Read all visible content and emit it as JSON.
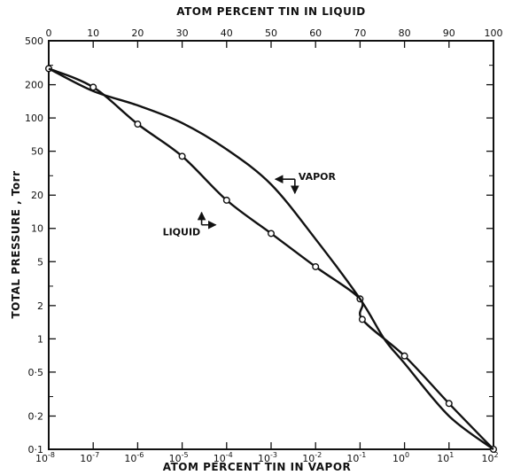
{
  "chart_data": {
    "type": "line",
    "title": "",
    "xlabel_top": "ATOM PERCENT TIN IN LIQUID",
    "xlabel_bottom": "ATOM PERCENT TIN IN VAPOR",
    "ylabel": "TOTAL PRESSURE , Torr",
    "y_scale": "log",
    "ylim": [
      0.1,
      500
    ],
    "y_ticks": [
      {
        "value": 0.1,
        "label": "0·1"
      },
      {
        "value": 0.2,
        "label": "0·2"
      },
      {
        "value": 0.5,
        "label": "0·5"
      },
      {
        "value": 1,
        "label": "1"
      },
      {
        "value": 2,
        "label": "2"
      },
      {
        "value": 5,
        "label": "5"
      },
      {
        "value": 10,
        "label": "10"
      },
      {
        "value": 20,
        "label": "20"
      },
      {
        "value": 50,
        "label": "50"
      },
      {
        "value": 100,
        "label": "100"
      },
      {
        "value": 200,
        "label": "200"
      },
      {
        "value": 500,
        "label": "500"
      }
    ],
    "top_axis": {
      "scale": "linear",
      "range": [
        0,
        100
      ],
      "ticks": [
        0,
        10,
        20,
        30,
        40,
        50,
        60,
        70,
        80,
        90,
        100
      ],
      "tick_labels": [
        "0",
        "10",
        "20",
        "30",
        "40",
        "50",
        "60",
        "70",
        "80",
        "90",
        "100"
      ]
    },
    "bottom_axis": {
      "scale": "log",
      "range": [
        1e-08,
        100
      ],
      "ticks": [
        {
          "value": 1e-08,
          "base": "10",
          "exp": "-8"
        },
        {
          "value": 1e-07,
          "base": "10",
          "exp": "-7"
        },
        {
          "value": 1e-06,
          "base": "10",
          "exp": "-6"
        },
        {
          "value": 1e-05,
          "base": "10",
          "exp": "-5"
        },
        {
          "value": 0.0001,
          "base": "10",
          "exp": "-4"
        },
        {
          "value": 0.001,
          "base": "10",
          "exp": "-3"
        },
        {
          "value": 0.01,
          "base": "10",
          "exp": "-2"
        },
        {
          "value": 0.1,
          "base": "10",
          "exp": "-1"
        },
        {
          "value": 1,
          "base": "10",
          "exp": "0"
        },
        {
          "value": 10,
          "base": "10",
          "exp": "1"
        },
        {
          "value": 100,
          "base": "10",
          "exp": "2"
        }
      ]
    },
    "series": [
      {
        "name": "LIQUID",
        "x_axis": "top",
        "markers": true,
        "points": [
          {
            "x": 0,
            "y": 280
          },
          {
            "x": 10,
            "y": 190
          },
          {
            "x": 20,
            "y": 88
          },
          {
            "x": 30,
            "y": 45
          },
          {
            "x": 40,
            "y": 18
          },
          {
            "x": 50,
            "y": 9
          },
          {
            "x": 60,
            "y": 4.5
          },
          {
            "x": 70,
            "y": 2.3
          },
          {
            "x": 70.5,
            "y": 1.5
          },
          {
            "x": 80,
            "y": 0.7
          },
          {
            "x": 90,
            "y": 0.26
          },
          {
            "x": 100,
            "y": 0.1
          }
        ]
      },
      {
        "name": "VAPOR",
        "x_axis": "bottom",
        "markers": false,
        "points": [
          {
            "x": 1e-08,
            "y": 280
          },
          {
            "x": 1e-07,
            "y": 175
          },
          {
            "x": 1e-06,
            "y": 130
          },
          {
            "x": 1e-05,
            "y": 90
          },
          {
            "x": 0.0001,
            "y": 52
          },
          {
            "x": 0.001,
            "y": 25
          },
          {
            "x": 0.01,
            "y": 8
          },
          {
            "x": 0.1,
            "y": 2.3
          },
          {
            "x": 0.35,
            "y": 1.0
          },
          {
            "x": 1,
            "y": 0.6
          },
          {
            "x": 10,
            "y": 0.2
          },
          {
            "x": 100,
            "y": 0.1
          }
        ]
      }
    ],
    "annotations": [
      {
        "text": "VAPOR",
        "x": 0.0015,
        "y": 25
      },
      {
        "text": "LIQUID",
        "x": 1.2e-05,
        "y": 10
      }
    ],
    "grid": false,
    "legend": "none"
  }
}
